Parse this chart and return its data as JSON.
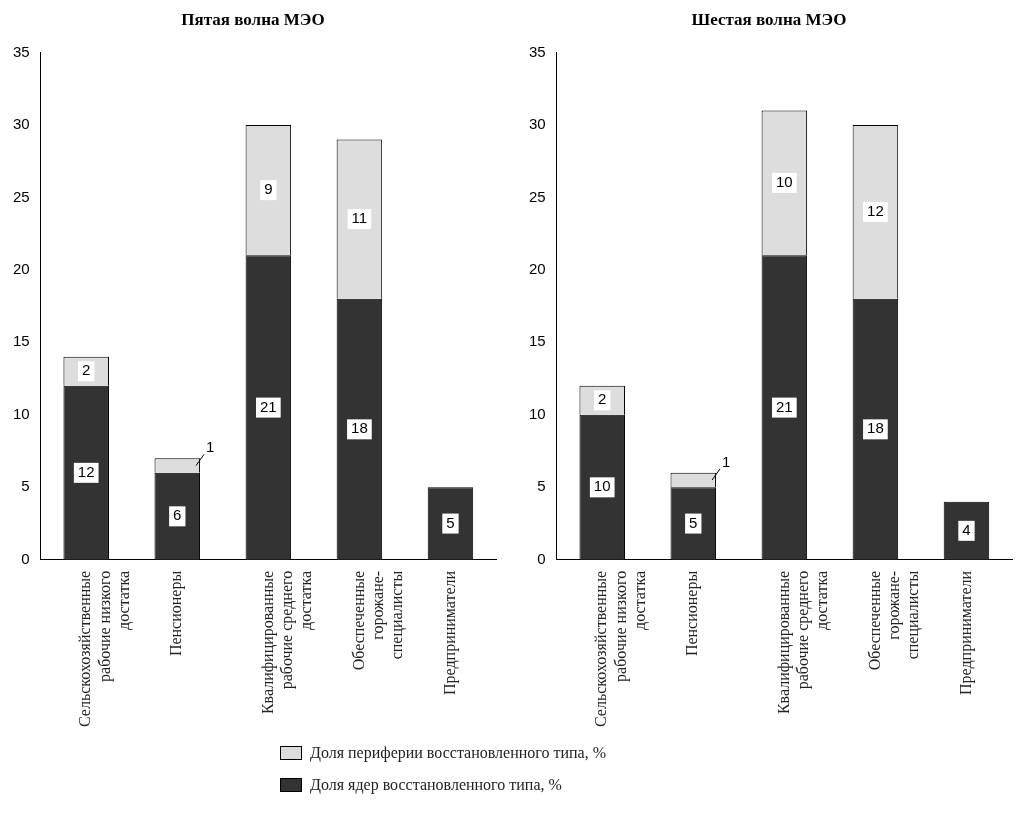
{
  "chart_data": [
    {
      "type": "bar",
      "title": "Пятая волна МЭО",
      "categories": [
        "Сельскохозяйственные рабочие низкого достатка",
        "Пенсионеры",
        "Квалифицированные рабочие среднего достатка",
        "Обеспеченные горожане-специалисты",
        "Предприниматели"
      ],
      "stacked": true,
      "ylim": [
        0,
        35
      ],
      "yticks": [
        0,
        5,
        10,
        15,
        20,
        25,
        30,
        35
      ],
      "grid": false,
      "legend": "bottom",
      "data_labels": true,
      "series": [
        {
          "name": "Доля ядер восстановленного типа, %",
          "color": "#333333",
          "values": [
            12,
            6,
            21,
            18,
            5
          ]
        },
        {
          "name": "Доля периферии восстановленного типа, %",
          "color": "#dddddd",
          "values": [
            2,
            1,
            9,
            11,
            null
          ]
        }
      ]
    },
    {
      "type": "bar",
      "title": "Шестая волна МЭО",
      "categories": [
        "Сельскохозяйственные рабочие низкого достатка",
        "Пенсионеры",
        "Квалифицированные рабочие среднего достатка",
        "Обеспеченные горожане-специалисты",
        "Предприниматели"
      ],
      "stacked": true,
      "ylim": [
        0,
        35
      ],
      "yticks": [
        0,
        5,
        10,
        15,
        20,
        25,
        30,
        35
      ],
      "grid": false,
      "data_labels": true,
      "series": [
        {
          "color": "#333333",
          "values": [
            10,
            5,
            21,
            18,
            4
          ]
        },
        {
          "color": "#dddddd",
          "values": [
            2,
            1,
            10,
            12,
            null
          ]
        }
      ]
    }
  ]
}
